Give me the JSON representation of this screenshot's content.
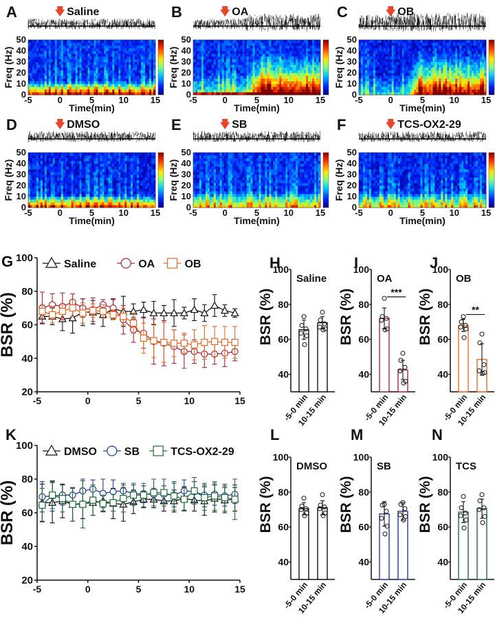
{
  "chart_data": [
    {
      "panel": "A",
      "type": "heatmap",
      "condition": "Saline",
      "title": "Saline",
      "xlabel": "Time(min)",
      "ylabel": "Freq (Hz)",
      "xlim": [
        -5,
        15
      ],
      "ylim": [
        0,
        50
      ],
      "xticks": [
        "-5",
        "0",
        "5",
        "10",
        "15"
      ],
      "yticks": [
        "0",
        "10",
        "20",
        "30",
        "40",
        "50"
      ],
      "injection_time": 0,
      "colorbar": "jet",
      "description": "Power concentrated below 10 Hz throughout; no change after injection"
    },
    {
      "panel": "B",
      "type": "heatmap",
      "condition": "OA",
      "title": "OA",
      "xlabel": "Time(min)",
      "ylabel": "Freq (Hz)",
      "xlim": [
        -5,
        15
      ],
      "ylim": [
        0,
        50
      ],
      "xticks": [
        "-5",
        "0",
        "5",
        "10",
        "15"
      ],
      "yticks": [
        "0",
        "10",
        "20",
        "30",
        "40",
        "50"
      ],
      "injection_time": 0,
      "colorbar": "jet",
      "description": "Power increases broadly across 0-30 Hz after ~4 min"
    },
    {
      "panel": "C",
      "type": "heatmap",
      "condition": "OB",
      "title": "OB",
      "xlabel": "Time(min)",
      "ylabel": "Freq (Hz)",
      "xlim": [
        -5,
        15
      ],
      "ylim": [
        0,
        50
      ],
      "xticks": [
        "-5",
        "0",
        "5",
        "10",
        "15"
      ],
      "yticks": [
        "0",
        "10",
        "20",
        "30",
        "40",
        "50"
      ],
      "injection_time": 0,
      "colorbar": "jet",
      "description": "Power increases across 0-30 Hz after ~3 min"
    },
    {
      "panel": "D",
      "type": "heatmap",
      "condition": "DMSO",
      "title": "DMSO",
      "xlabel": "Time(min)",
      "ylabel": "Freq (Hz)",
      "xlim": [
        -5,
        15
      ],
      "ylim": [
        0,
        50
      ],
      "xticks": [
        "-5",
        "0",
        "5",
        "10",
        "15"
      ],
      "yticks": [
        "0",
        "10",
        "20",
        "30",
        "40",
        "50"
      ],
      "injection_time": 0,
      "colorbar": "jet",
      "description": "Stable low-frequency power"
    },
    {
      "panel": "E",
      "type": "heatmap",
      "condition": "SB",
      "title": "SB",
      "xlabel": "Time(min)",
      "ylabel": "Freq (Hz)",
      "xlim": [
        -5,
        15
      ],
      "ylim": [
        0,
        50
      ],
      "xticks": [
        "-5",
        "0",
        "5",
        "10",
        "15"
      ],
      "yticks": [
        "0",
        "10",
        "20",
        "30",
        "40",
        "50"
      ],
      "injection_time": 0,
      "colorbar": "jet",
      "description": "Stable, no post-injection change"
    },
    {
      "panel": "F",
      "type": "heatmap",
      "condition": "TCS-OX2-29",
      "title": "TCS-OX2-29",
      "xlabel": "Time(min)",
      "ylabel": "Freq (Hz)",
      "xlim": [
        -5,
        15
      ],
      "ylim": [
        0,
        50
      ],
      "xticks": [
        "-5",
        "0",
        "5",
        "10",
        "15"
      ],
      "yticks": [
        "0",
        "10",
        "20",
        "30",
        "40",
        "50"
      ],
      "injection_time": 0,
      "colorbar": "jet",
      "description": "Stable, no post-injection change"
    },
    {
      "panel": "G",
      "type": "line",
      "xlabel": "",
      "ylabel": "BSR (%)",
      "xlim": [
        -5,
        15
      ],
      "ylim": [
        20,
        100
      ],
      "xticks": [
        "-5",
        "0",
        "5",
        "10",
        "15"
      ],
      "yticks": [
        "20",
        "40",
        "60",
        "80",
        "100"
      ],
      "legend": "top",
      "x": [
        -4.5,
        -3.5,
        -2.5,
        -1.5,
        -0.5,
        0.5,
        1.5,
        2.5,
        3.5,
        4.5,
        5.5,
        6.5,
        7.5,
        8.5,
        9.5,
        10.5,
        11.5,
        12.5,
        13.5,
        14.5
      ],
      "series": [
        {
          "name": "Saline",
          "color": "#111111",
          "marker": "triangle",
          "values": [
            65,
            65,
            63.5,
            64,
            67.5,
            67.5,
            66,
            69.5,
            68,
            68,
            69,
            67,
            67,
            67,
            67,
            69,
            67,
            71.5,
            68.5,
            67
          ],
          "errors": [
            4,
            5,
            7,
            9,
            8,
            7,
            7,
            6,
            9,
            4.5,
            4.5,
            7,
            4.5,
            8,
            3.5,
            6.5,
            5,
            6.5,
            3.5,
            2.5
          ]
        },
        {
          "name": "OA",
          "color": "#b0243a",
          "marker": "circle",
          "values": [
            70,
            72,
            71,
            73.5,
            70,
            69,
            72,
            70,
            63,
            57,
            55,
            50,
            49,
            47,
            44,
            44,
            42.5,
            42.5,
            43,
            44
          ],
          "errors": [
            9.5,
            6.5,
            8,
            5,
            5.5,
            7,
            3,
            5,
            8.5,
            7.5,
            9,
            13.5,
            13.5,
            10,
            10,
            7,
            8,
            6,
            8,
            5.5
          ]
        },
        {
          "name": "OB",
          "color": "#ec6a24",
          "marker": "square",
          "values": [
            68,
            66,
            68,
            70,
            67,
            68.5,
            68,
            66,
            65,
            61,
            52,
            50.5,
            49.5,
            49,
            49,
            48,
            49.5,
            50,
            49.5,
            49.5
          ],
          "errors": [
            4,
            5,
            4,
            5,
            6,
            4,
            4,
            3,
            5,
            6,
            9,
            10,
            12,
            8,
            6,
            9,
            10,
            9,
            9.5,
            9.5
          ]
        }
      ]
    },
    {
      "panel": "H",
      "type": "bar",
      "title": "Saline",
      "color": "#111111",
      "categories": [
        "-5-0 min",
        "10-15 min"
      ],
      "ylabel": "BSR (%)",
      "ylim": [
        30,
        100
      ],
      "yticks": [
        "40",
        "60",
        "80",
        "100"
      ],
      "values": [
        65.5,
        69.5
      ],
      "errors": [
        5.5,
        3.5
      ],
      "points": [
        [
          73,
          68,
          66,
          63.5,
          62,
          57
        ],
        [
          75.5,
          71,
          69,
          67,
          66,
          65.5
        ]
      ],
      "significance": ""
    },
    {
      "panel": "I",
      "type": "bar",
      "title": "OA",
      "color": "#b0243a",
      "categories": [
        "-5-0 min",
        "10-15 min"
      ],
      "ylabel": "BSR (%)",
      "ylim": [
        30,
        100
      ],
      "yticks": [
        "40",
        "60",
        "80",
        "100"
      ],
      "values": [
        72,
        42.5
      ],
      "errors": [
        6,
        5.5
      ],
      "points": [
        [
          83.5,
          73,
          72,
          71,
          66,
          65.5
        ],
        [
          52,
          48,
          44,
          42,
          36,
          35
        ]
      ],
      "significance": "***"
    },
    {
      "panel": "J",
      "type": "bar",
      "title": "OB",
      "color": "#ec6a24",
      "categories": [
        "-5-0 min",
        "10-15 min"
      ],
      "ylabel": "BSR (%)",
      "ylim": [
        30,
        100
      ],
      "yticks": [
        "40",
        "60",
        "80",
        "100"
      ],
      "values": [
        68,
        48.5
      ],
      "errors": [
        3.5,
        9
      ],
      "points": [
        [
          73,
          70,
          68,
          67,
          66,
          61
        ],
        [
          63,
          58,
          45.5,
          42,
          41,
          40.5
        ]
      ],
      "significance": "**"
    },
    {
      "panel": "K",
      "type": "line",
      "xlabel": "",
      "ylabel": "BSR (%)",
      "xlim": [
        -5,
        15
      ],
      "ylim": [
        20,
        100
      ],
      "xticks": [
        "-5",
        "0",
        "5",
        "10",
        "15"
      ],
      "yticks": [
        "20",
        "40",
        "60",
        "80",
        "100"
      ],
      "legend": "top",
      "x": [
        -4.5,
        -3.5,
        -2.5,
        -1.5,
        -0.5,
        0.5,
        1.5,
        2.5,
        3.5,
        4.5,
        5.5,
        6.5,
        7.5,
        8.5,
        9.5,
        10.5,
        11.5,
        12.5,
        13.5,
        14.5
      ],
      "series": [
        {
          "name": "DMSO",
          "color": "#111111",
          "marker": "triangle",
          "values": [
            66,
            66,
            67,
            65,
            65.5,
            66,
            67,
            65.5,
            65,
            66.5,
            68,
            68,
            67,
            67,
            68.5,
            67.5,
            67,
            68.5,
            67.5,
            68
          ],
          "errors": [
            11,
            12,
            10,
            10,
            9,
            7.5,
            6,
            9,
            10,
            7,
            5,
            5,
            6,
            6.5,
            7,
            6.5,
            8.5,
            8,
            7.5,
            7
          ]
        },
        {
          "name": "SB",
          "color": "#1f3d9c",
          "marker": "circle",
          "values": [
            69.5,
            70,
            70.5,
            70.5,
            73,
            74,
            71.5,
            72.5,
            73,
            71.5,
            71,
            71,
            71,
            70.5,
            73,
            72.5,
            70.5,
            71,
            70,
            71
          ],
          "errors": [
            9,
            9,
            6,
            4,
            7,
            5.5,
            8.5,
            7,
            4.5,
            6,
            5,
            3.5,
            5,
            7,
            6.5,
            6,
            7,
            6.5,
            6,
            5.5
          ]
        },
        {
          "name": "TCS-OX2-29",
          "color": "#1f6b3a",
          "marker": "square",
          "values": [
            64.5,
            70.5,
            68.5,
            65,
            65,
            67.5,
            65.5,
            66,
            68.5,
            70.5,
            70.5,
            72,
            72,
            70,
            68,
            73,
            69,
            70,
            69,
            68
          ],
          "errors": [
            10,
            8,
            8,
            10,
            14,
            9,
            5,
            5,
            8,
            6,
            7,
            8,
            8,
            8.5,
            7,
            8,
            7.5,
            8.5,
            8,
            12
          ]
        }
      ]
    },
    {
      "panel": "L",
      "type": "bar",
      "title": "DMSO",
      "color": "#111111",
      "categories": [
        "-5-0 min",
        "10-15 min"
      ],
      "ylabel": "BSR (%)",
      "ylim": [
        30,
        100
      ],
      "yticks": [
        "40",
        "60",
        "80",
        "100"
      ],
      "values": [
        70.5,
        71
      ],
      "errors": [
        3.5,
        4
      ],
      "points": [
        [
          76.5,
          72,
          70.5,
          70,
          68,
          66.5
        ],
        [
          78.5,
          72.5,
          71.5,
          70.5,
          68,
          66.5
        ]
      ],
      "significance": ""
    },
    {
      "panel": "M",
      "type": "bar",
      "title": "SB",
      "color": "#1f3d9c",
      "categories": [
        "-5-0 min",
        "10-15 min"
      ],
      "ylabel": "BSR (%)",
      "ylim": [
        30,
        100
      ],
      "yticks": [
        "40",
        "60",
        "80",
        "100"
      ],
      "values": [
        67.5,
        69
      ],
      "errors": [
        7,
        5
      ],
      "points": [
        [
          73,
          72.5,
          69,
          65,
          60.5,
          56
        ],
        [
          74,
          73,
          70.5,
          67,
          66,
          64
        ]
      ],
      "significance": ""
    },
    {
      "panel": "N",
      "type": "bar",
      "title": "TCS",
      "color": "#1f6b3a",
      "categories": [
        "-5-0 min",
        "10-15 min"
      ],
      "ylabel": "BSR (%)",
      "ylim": [
        30,
        100
      ],
      "yticks": [
        "40",
        "60",
        "80",
        "100"
      ],
      "values": [
        68.5,
        70.5
      ],
      "errors": [
        6,
        5.5
      ],
      "points": [
        [
          77.5,
          71,
          68,
          66.5,
          64,
          59.5
        ],
        [
          78.5,
          75,
          71,
          70,
          66,
          62.5
        ]
      ],
      "significance": ""
    }
  ],
  "panel_labels": [
    "A",
    "B",
    "C",
    "D",
    "E",
    "F",
    "G",
    "H",
    "I",
    "J",
    "K",
    "L",
    "M",
    "N"
  ],
  "colors": {
    "injection_arrow": "#e8452a",
    "axis": "#111111"
  }
}
